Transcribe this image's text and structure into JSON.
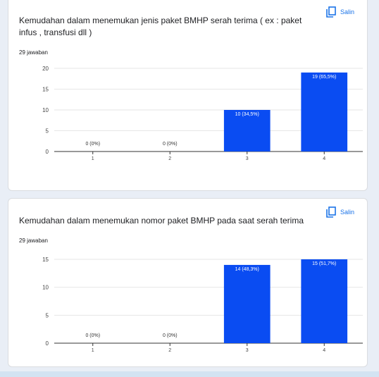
{
  "copy_label": "Salin",
  "colors": {
    "bar": "#0a4cf2",
    "accent": "#1a73e8",
    "grid": "#e6e6e6",
    "axis": "#333333"
  },
  "questions": [
    {
      "title": "Kemudahan dalam menemukan jenis paket BMHP serah terima ( ex : paket infus , transfusi dll )",
      "responses": "29 jawaban",
      "chart_data": {
        "type": "bar",
        "categories": [
          "1",
          "2",
          "3",
          "4"
        ],
        "values": [
          0,
          0,
          10,
          19
        ],
        "data_labels": [
          "0 (0%)",
          "0 (0%)",
          "10 (34,5%)",
          "19 (65,5%)"
        ],
        "yticks": [
          0,
          5,
          10,
          15,
          20
        ],
        "ylim": [
          0,
          20
        ],
        "grid": true
      }
    },
    {
      "title": "Kemudahan dalam menemukan nomor  paket BMHP pada saat  serah terima",
      "responses": "29 jawaban",
      "chart_data": {
        "type": "bar",
        "categories": [
          "1",
          "2",
          "3",
          "4"
        ],
        "values": [
          0,
          0,
          14,
          15
        ],
        "data_labels": [
          "0 (0%)",
          "0 (0%)",
          "14 (48,3%)",
          "15 (51,7%)"
        ],
        "yticks": [
          0,
          5,
          10,
          15
        ],
        "ylim": [
          0,
          15
        ],
        "grid": true
      }
    }
  ]
}
